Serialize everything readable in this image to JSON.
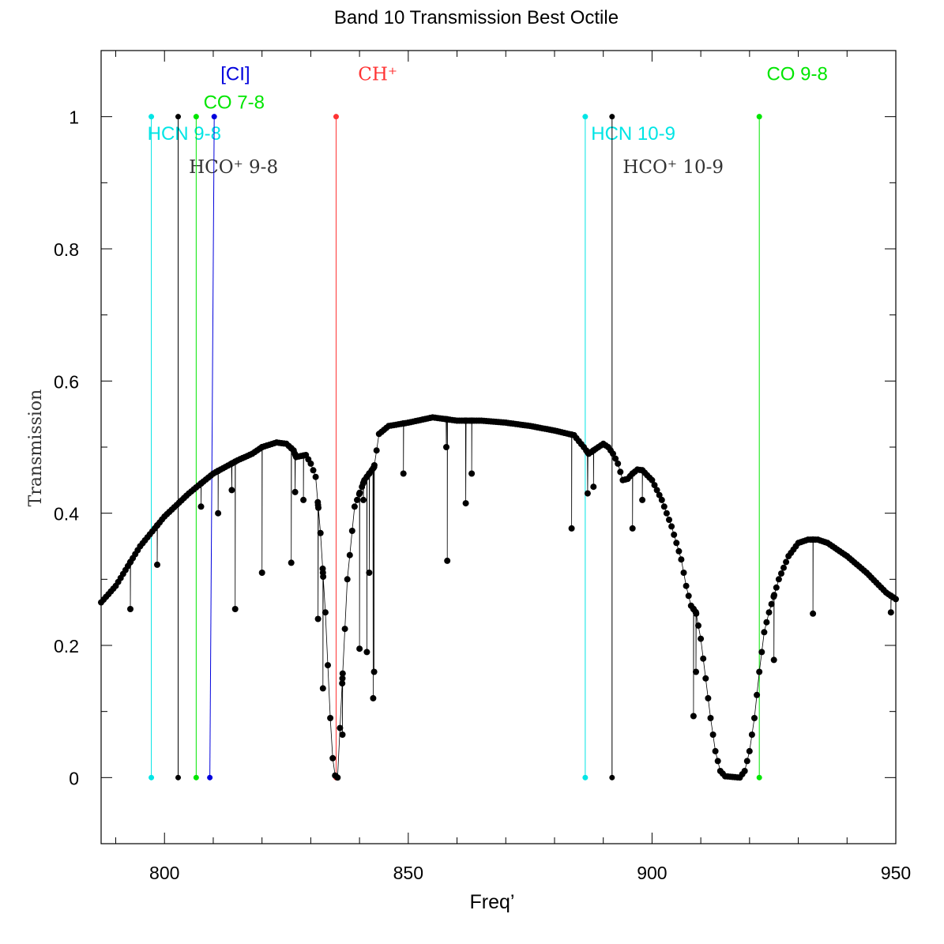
{
  "chart_data": {
    "type": "line",
    "title": "Band 10 Transmission Best Octile",
    "xlabel": "Freq’",
    "ylabel": "Transmission",
    "xlim": [
      787,
      950
    ],
    "ylim": [
      -0.1,
      1.1
    ],
    "x_ticks": [
      800,
      850,
      900,
      950
    ],
    "y_ticks": [
      0,
      0.2,
      0.4,
      0.6,
      0.8,
      1
    ],
    "x_tick_labels": [
      "800",
      "850",
      "900",
      "950"
    ],
    "y_tick_labels": [
      "0",
      "0.2",
      "0.4",
      "0.6",
      "0.8",
      "1"
    ],
    "grid": false,
    "series": [
      {
        "color": "#000000",
        "baseline": [
          [
            787,
            0.265
          ],
          [
            790,
            0.29
          ],
          [
            795,
            0.35
          ],
          [
            800,
            0.395
          ],
          [
            805,
            0.43
          ],
          [
            810,
            0.46
          ],
          [
            815,
            0.48
          ],
          [
            818,
            0.49
          ],
          [
            820,
            0.5
          ],
          [
            823,
            0.507
          ],
          [
            825,
            0.505
          ],
          [
            826.5,
            0.495
          ],
          [
            827,
            0.485
          ],
          [
            829,
            0.488
          ],
          [
            830,
            0.475
          ],
          [
            831,
            0.455
          ],
          [
            832,
            0.37
          ],
          [
            833,
            0.25
          ],
          [
            834,
            0.09
          ],
          [
            834.7,
            0.005
          ],
          [
            835.5,
            0.0
          ],
          [
            836.5,
            0.15
          ],
          [
            837.5,
            0.3
          ],
          [
            839,
            0.41
          ],
          [
            841,
            0.45
          ],
          [
            843,
            0.47
          ],
          [
            844,
            0.52
          ],
          [
            846,
            0.532
          ],
          [
            850,
            0.537
          ],
          [
            855,
            0.545
          ],
          [
            860,
            0.54
          ],
          [
            865,
            0.54
          ],
          [
            870,
            0.537
          ],
          [
            875,
            0.532
          ],
          [
            880,
            0.525
          ],
          [
            884,
            0.518
          ],
          [
            886,
            0.5
          ],
          [
            887,
            0.49
          ],
          [
            889,
            0.5
          ],
          [
            890,
            0.505
          ],
          [
            891,
            0.5
          ],
          [
            892,
            0.49
          ],
          [
            893,
            0.475
          ],
          [
            894,
            0.45
          ],
          [
            895,
            0.452
          ],
          [
            896,
            0.46
          ],
          [
            897,
            0.466
          ],
          [
            898,
            0.465
          ],
          [
            900,
            0.45
          ],
          [
            902,
            0.42
          ],
          [
            904,
            0.38
          ],
          [
            906,
            0.33
          ],
          [
            907,
            0.29
          ],
          [
            908,
            0.26
          ],
          [
            909,
            0.25
          ],
          [
            910,
            0.21
          ],
          [
            911,
            0.15
          ],
          [
            912,
            0.09
          ],
          [
            913,
            0.04
          ],
          [
            914,
            0.01
          ],
          [
            915,
            0.002
          ],
          [
            918,
            0.0
          ],
          [
            919,
            0.01
          ],
          [
            920,
            0.04
          ],
          [
            921,
            0.09
          ],
          [
            922,
            0.16
          ],
          [
            923,
            0.22
          ],
          [
            924,
            0.25
          ],
          [
            926,
            0.3
          ],
          [
            928,
            0.335
          ],
          [
            930,
            0.355
          ],
          [
            932,
            0.36
          ],
          [
            934,
            0.36
          ],
          [
            936,
            0.355
          ],
          [
            940,
            0.335
          ],
          [
            944,
            0.31
          ],
          [
            948,
            0.28
          ],
          [
            950,
            0.27
          ]
        ],
        "dips": [
          [
            793,
            0.255
          ],
          [
            798.5,
            0.322
          ],
          [
            807.5,
            0.41
          ],
          [
            811,
            0.4
          ],
          [
            813.8,
            0.435
          ],
          [
            814.5,
            0.255
          ],
          [
            820,
            0.31
          ],
          [
            826,
            0.325
          ],
          [
            826.8,
            0.432
          ],
          [
            828.5,
            0.42
          ],
          [
            831.5,
            0.24
          ],
          [
            832.5,
            0.135
          ],
          [
            836.5,
            0.065
          ],
          [
            840,
            0.195
          ],
          [
            840.8,
            0.42
          ],
          [
            841.5,
            0.19
          ],
          [
            842,
            0.31
          ],
          [
            842.8,
            0.12
          ],
          [
            843,
            0.16
          ],
          [
            849,
            0.46
          ],
          [
            858,
            0.328
          ],
          [
            857.8,
            0.5
          ],
          [
            861.8,
            0.415
          ],
          [
            863,
            0.46
          ],
          [
            883.5,
            0.377
          ],
          [
            886.8,
            0.43
          ],
          [
            888,
            0.44
          ],
          [
            896,
            0.377
          ],
          [
            898,
            0.42
          ],
          [
            908.5,
            0.093
          ],
          [
            909,
            0.16
          ],
          [
            925,
            0.178
          ],
          [
            933,
            0.248
          ],
          [
            949,
            0.25
          ]
        ]
      }
    ],
    "lines": [
      {
        "label": "HCN 9-8",
        "x": 797.3,
        "color": "#00e5e5",
        "label_x": 796.5,
        "label_y": 0.965,
        "label_font": "sans"
      },
      {
        "label": "HCO⁺ 9-8",
        "x": 802.8,
        "color": "#000000",
        "label_x": 805,
        "label_y": 0.915,
        "label_font": "serif"
      },
      {
        "label": "CO 7-8",
        "x": 806.5,
        "color": "#00e600",
        "label_x": 808,
        "label_y": 1.012,
        "label_font": "sans"
      },
      {
        "label": "[CI]",
        "x": 809.3,
        "x_top": 809.3,
        "color": "#0000dd",
        "label_x": 811.5,
        "label_y": 1.055,
        "label_font": "sans"
      },
      {
        "label": "CH⁺",
        "x": 835.2,
        "color": "#ff3333",
        "label_x": 839.7,
        "label_y": 1.055,
        "label_font": "serif"
      },
      {
        "label": "HCN 10-9",
        "x": 886.3,
        "color": "#00e5e5",
        "label_x": 887.5,
        "label_y": 0.965,
        "label_font": "sans"
      },
      {
        "label": "HCO⁺ 10-9",
        "x": 891.8,
        "color": "#000000",
        "label_x": 894,
        "label_y": 0.915,
        "label_font": "serif"
      },
      {
        "label": "CO 9-8",
        "x": 922,
        "color": "#00e600",
        "label_x": 923.5,
        "label_y": 1.055,
        "label_font": "sans"
      }
    ]
  }
}
